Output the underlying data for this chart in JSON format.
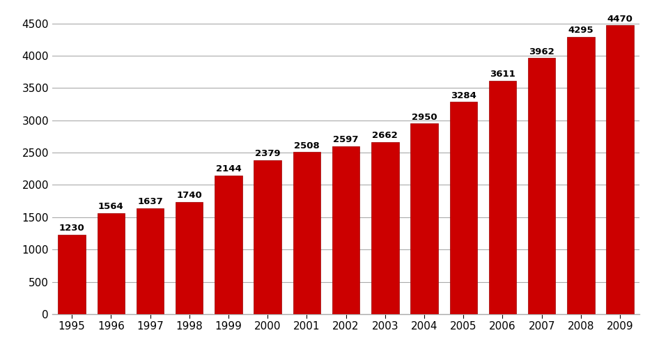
{
  "years": [
    "1995",
    "1996",
    "1997",
    "1998",
    "1999",
    "2000",
    "2001",
    "2002",
    "2003",
    "2004",
    "2005",
    "2006",
    "2007",
    "2008",
    "2009"
  ],
  "values": [
    1230,
    1564,
    1637,
    1740,
    2144,
    2379,
    2508,
    2597,
    2662,
    2950,
    3284,
    3611,
    3962,
    4295,
    4470
  ],
  "bar_color": "#cc0000",
  "bar_edge_color": "#990000",
  "background_color": "#ffffff",
  "plot_bg_color": "#ffffff",
  "grid_color": "#aaaaaa",
  "label_color": "#000000",
  "ylim": [
    0,
    4700
  ],
  "yticks": [
    0,
    500,
    1000,
    1500,
    2000,
    2500,
    3000,
    3500,
    4000,
    4500
  ],
  "label_fontsize": 9.5,
  "tick_fontsize": 11,
  "bar_width": 0.7
}
